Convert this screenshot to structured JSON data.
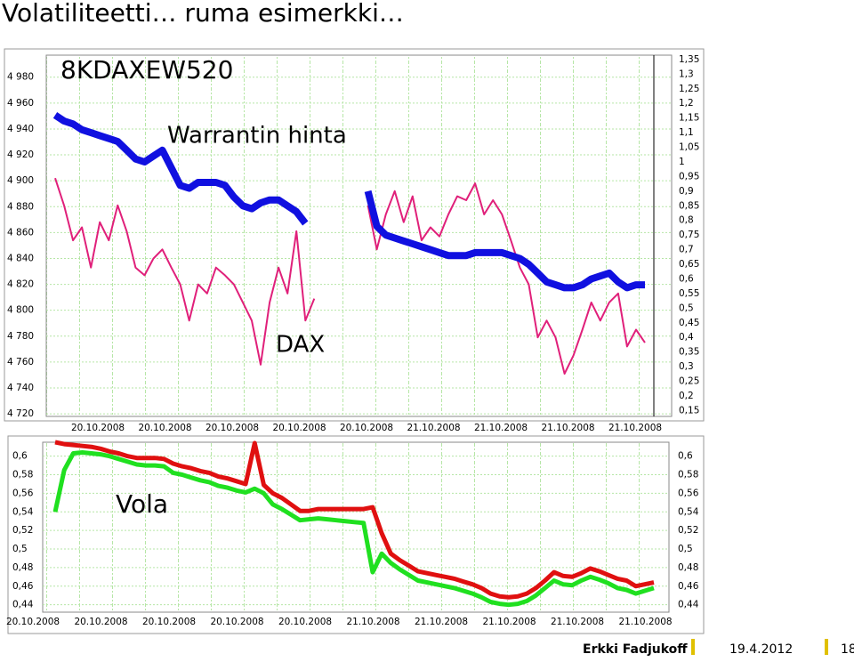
{
  "slide": {
    "title": "Volatiliteetti… ruma esimerkki…",
    "author": "Erkki Fadjukoff",
    "date": "19.4.2012",
    "page": "18"
  },
  "chart_data": [
    {
      "type": "line",
      "annotations": [
        "8KDAXEW520",
        "Warrantin hinta",
        "DAX"
      ],
      "xtick_labels": [
        "20.10.2008",
        "20.10.2008",
        "20.10.2008",
        "20.10.2008",
        "20.10.2008",
        "21.10.2008",
        "21.10.2008",
        "21.10.2008",
        "21.10.2008"
      ],
      "ylim": [
        4718,
        4997
      ],
      "yticks": [
        {
          "value": 4980,
          "label": "4 980"
        },
        {
          "value": 4960,
          "label": "4 960"
        },
        {
          "value": 4940,
          "label": "4 940"
        },
        {
          "value": 4920,
          "label": "4 920"
        },
        {
          "value": 4900,
          "label": "4 900"
        },
        {
          "value": 4880,
          "label": "4 880"
        },
        {
          "value": 4860,
          "label": "4 860"
        },
        {
          "value": 4840,
          "label": "4 840"
        },
        {
          "value": 4820,
          "label": "4 820"
        },
        {
          "value": 4800,
          "label": "4 800"
        },
        {
          "value": 4780,
          "label": "4 780"
        },
        {
          "value": 4760,
          "label": "4 760"
        },
        {
          "value": 4740,
          "label": "4 740"
        },
        {
          "value": 4720,
          "label": "4 720"
        }
      ],
      "y2lim": [
        0.13,
        1.365
      ],
      "y2ticks": [
        {
          "value": 1.35,
          "label": "1,35"
        },
        {
          "value": 1.3,
          "label": "1,3"
        },
        {
          "value": 1.25,
          "label": "1,25"
        },
        {
          "value": 1.2,
          "label": "1,2"
        },
        {
          "value": 1.15,
          "label": "1,15"
        },
        {
          "value": 1.1,
          "label": "1,1"
        },
        {
          "value": 1.05,
          "label": "1,05"
        },
        1,
        {
          "value": 0.95,
          "label": "0,95"
        },
        {
          "value": 0.9,
          "label": "0,9"
        },
        {
          "value": 0.85,
          "label": "0,85"
        },
        {
          "value": 0.8,
          "label": "0,8"
        },
        {
          "value": 0.75,
          "label": "0,75"
        },
        {
          "value": 0.7,
          "label": "0,7"
        },
        {
          "value": 0.65,
          "label": "0,65"
        },
        {
          "value": 0.6,
          "label": "0,6"
        },
        {
          "value": 0.55,
          "label": "0,55"
        },
        {
          "value": 0.5,
          "label": "0,5"
        },
        {
          "value": 0.45,
          "label": "0,45"
        },
        {
          "value": 0.4,
          "label": "0,4"
        },
        {
          "value": 0.35,
          "label": "0,35"
        },
        {
          "value": 0.3,
          "label": "0,3"
        },
        {
          "value": 0.25,
          "label": "0,25"
        },
        {
          "value": 0.2,
          "label": "0,2"
        },
        {
          "value": 0.15,
          "label": "0,15"
        }
      ],
      "grid": true,
      "series": [
        {
          "color": "#e0207a",
          "values": [
            4902,
            4881,
            4854,
            4864,
            4833,
            4868,
            4854,
            4881,
            4861,
            4833,
            4827,
            4840,
            4847,
            4833,
            4820,
            4792,
            4820,
            4813,
            4833,
            4827,
            4820,
            4806,
            4792,
            4758,
            4806,
            4833,
            4813,
            4861,
            4792,
            4809,
            null,
            null,
            null,
            null,
            null,
            4881,
            4847,
            4874,
            4892,
            4868,
            4888,
            4854,
            4864,
            4857,
            4874,
            4888,
            4885,
            4898,
            4874,
            4885,
            4874,
            4854,
            4833,
            4820,
            4779,
            4792,
            4779,
            4751,
            4765,
            4785,
            4806,
            4792,
            4806,
            4813,
            4772,
            4785,
            4775
          ]
        },
        {
          "color": "#1010e0",
          "axis": "y2",
          "values": [
            1.16,
            1.14,
            1.13,
            1.11,
            1.1,
            1.09,
            1.08,
            1.07,
            1.04,
            1.01,
            1.0,
            1.02,
            1.04,
            0.98,
            0.92,
            0.91,
            0.93,
            0.93,
            0.93,
            0.92,
            0.88,
            0.85,
            0.84,
            0.86,
            0.87,
            0.87,
            0.85,
            0.83,
            0.79,
            null,
            null,
            null,
            null,
            null,
            null,
            0.9,
            0.78,
            0.75,
            0.74,
            0.73,
            0.72,
            0.71,
            0.7,
            0.69,
            0.68,
            0.68,
            0.68,
            0.69,
            0.69,
            0.69,
            0.69,
            0.68,
            0.67,
            0.65,
            0.62,
            0.59,
            0.58,
            0.57,
            0.57,
            0.58,
            0.6,
            0.61,
            0.62,
            0.59,
            0.57,
            0.58,
            0.58
          ]
        }
      ]
    },
    {
      "type": "line",
      "annotations": [
        "Vola"
      ],
      "xtick_labels": [
        "20.10.2008",
        "20.10.2008",
        "20.10.2008",
        "20.10.2008",
        "20.10.2008",
        "21.10.2008",
        "21.10.2008",
        "21.10.2008",
        "21.10.2008",
        "21.10.2008"
      ],
      "ylim": [
        0.432,
        0.615
      ],
      "yticks": [
        {
          "value": 0.6,
          "label": "0,6"
        },
        {
          "value": 0.58,
          "label": "0,58"
        },
        {
          "value": 0.56,
          "label": "0,56"
        },
        {
          "value": 0.54,
          "label": "0,54"
        },
        {
          "value": 0.52,
          "label": "0,52"
        },
        {
          "value": 0.5,
          "label": "0,5"
        },
        {
          "value": 0.48,
          "label": "0,48"
        },
        {
          "value": 0.46,
          "label": "0,46"
        },
        {
          "value": 0.44,
          "label": "0,44"
        }
      ],
      "grid": true,
      "series": [
        {
          "color": "#e01010",
          "values": [
            0.615,
            0.613,
            0.612,
            0.611,
            0.61,
            0.608,
            0.605,
            0.603,
            0.6,
            0.598,
            0.598,
            0.598,
            0.597,
            0.592,
            0.589,
            0.587,
            0.584,
            0.582,
            0.578,
            0.576,
            0.573,
            0.57,
            0.614,
            0.569,
            0.56,
            0.555,
            0.548,
            0.541,
            0.541,
            0.543,
            0.543,
            0.543,
            0.543,
            0.543,
            0.543,
            0.545,
            0.517,
            0.495,
            0.488,
            0.482,
            0.476,
            0.474,
            0.472,
            0.47,
            0.468,
            0.465,
            0.462,
            0.458,
            0.452,
            0.449,
            0.448,
            0.449,
            0.452,
            0.458,
            0.466,
            0.475,
            0.471,
            0.47,
            0.474,
            0.479,
            0.476,
            0.472,
            0.468,
            0.466,
            0.46,
            0.462,
            0.464
          ]
        },
        {
          "color": "#20e020",
          "values": [
            0.54,
            0.585,
            0.603,
            0.604,
            0.603,
            0.602,
            0.6,
            0.597,
            0.594,
            0.591,
            0.59,
            0.59,
            0.589,
            0.582,
            0.58,
            0.577,
            0.574,
            0.572,
            0.568,
            0.566,
            0.563,
            0.561,
            0.565,
            0.56,
            0.548,
            0.543,
            0.537,
            0.531,
            0.532,
            0.533,
            0.532,
            0.531,
            0.53,
            0.529,
            0.528,
            0.475,
            0.495,
            0.485,
            0.478,
            0.472,
            0.466,
            0.464,
            0.462,
            0.46,
            0.458,
            0.455,
            0.452,
            0.448,
            0.443,
            0.441,
            0.44,
            0.441,
            0.444,
            0.45,
            0.458,
            0.466,
            0.462,
            0.461,
            0.466,
            0.47,
            0.467,
            0.463,
            0.458,
            0.456,
            0.452,
            0.455,
            0.458
          ]
        }
      ]
    }
  ]
}
